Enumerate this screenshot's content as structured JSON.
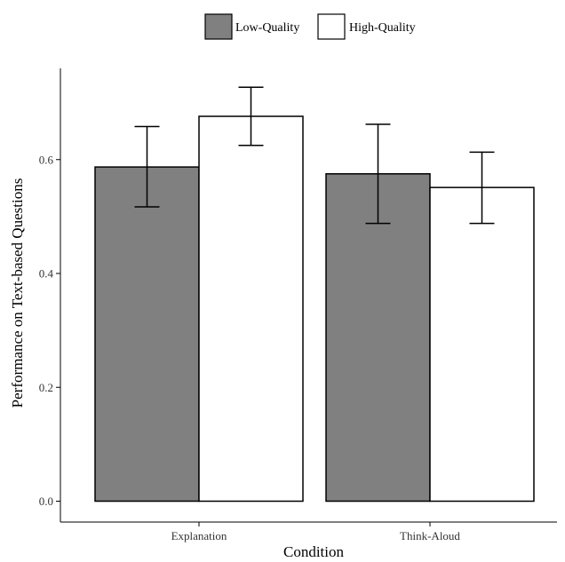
{
  "chart_data": {
    "type": "bar",
    "xlabel": "Condition",
    "ylabel": "Performance on Text-based Questions",
    "categories": [
      "Explanation",
      "Think-Aloud"
    ],
    "series": [
      {
        "name": "Low-Quality",
        "color": "#808080",
        "values": [
          0.587,
          0.575
        ],
        "error_low": [
          0.517,
          0.488
        ],
        "error_high": [
          0.658,
          0.662
        ]
      },
      {
        "name": "High-Quality",
        "color": "#ffffff",
        "values": [
          0.676,
          0.551
        ],
        "error_low": [
          0.625,
          0.488
        ],
        "error_high": [
          0.727,
          0.613
        ]
      }
    ],
    "ylim": [
      0,
      0.75
    ],
    "yticks": [
      "0.0",
      "0.2",
      "0.4",
      "0.6"
    ],
    "ytick_values": [
      0,
      0.2,
      0.4,
      0.6
    ],
    "grid": false,
    "legend_position": "top"
  }
}
